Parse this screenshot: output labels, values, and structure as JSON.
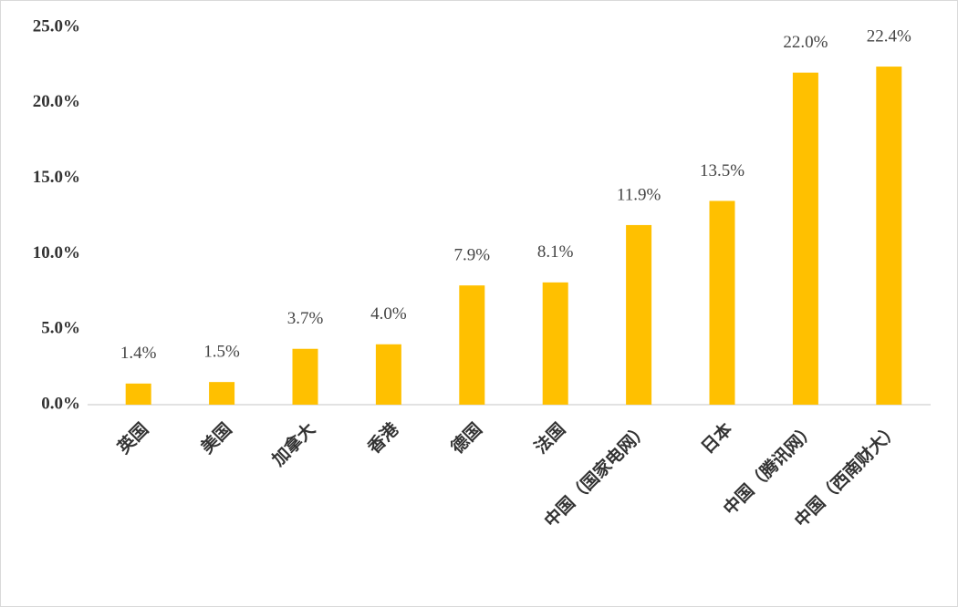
{
  "chart_data": {
    "type": "bar",
    "categories": [
      "英国",
      "美国",
      "加拿大",
      "香港",
      "德国",
      "法国",
      "中国（国家电网）",
      "日本",
      "中国（腾讯网）",
      "中国（西南财大）"
    ],
    "values": [
      1.4,
      1.5,
      3.7,
      4.0,
      7.9,
      8.1,
      11.9,
      13.5,
      22.0,
      22.4
    ],
    "value_labels": [
      "1.4%",
      "1.5%",
      "3.7%",
      "4.0%",
      "7.9%",
      "8.1%",
      "11.9%",
      "13.5%",
      "22.0%",
      "22.4%"
    ],
    "color": "#ffc000",
    "ylim": [
      0,
      25
    ],
    "yticks": [
      {
        "value": 0,
        "label": "0.0%"
      },
      {
        "value": 5,
        "label": "5.0%"
      },
      {
        "value": 10,
        "label": "10.0%"
      },
      {
        "value": 15,
        "label": "15.0%"
      },
      {
        "value": 20,
        "label": "20.0%"
      },
      {
        "value": 25,
        "label": "25.0%"
      }
    ],
    "grid": false
  }
}
